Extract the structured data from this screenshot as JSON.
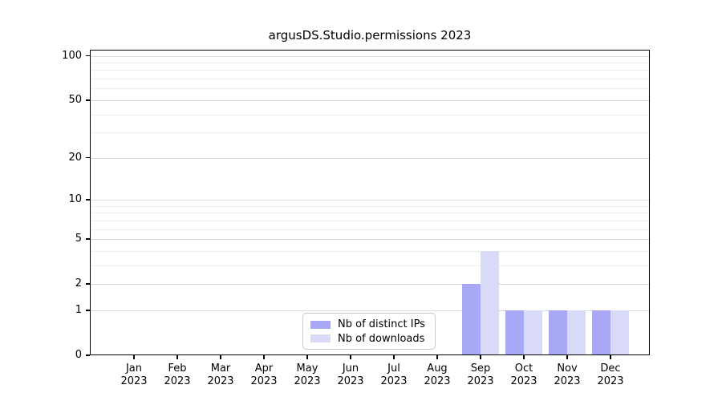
{
  "chart_data": {
    "type": "bar",
    "title": "argusDS.Studio.permissions 2023",
    "categories": [
      "Jan",
      "Feb",
      "Mar",
      "Apr",
      "May",
      "Jun",
      "Jul",
      "Aug",
      "Sep",
      "Oct",
      "Nov",
      "Dec"
    ],
    "x_year_label": "2023",
    "series": [
      {
        "name": "Nb of distinct IPs",
        "color": "#a8a8f6",
        "values": [
          0,
          0,
          0,
          0,
          0,
          0,
          0,
          0,
          2,
          1,
          1,
          1
        ]
      },
      {
        "name": "Nb of downloads",
        "color": "#d9d9f8",
        "values": [
          0,
          0,
          0,
          0,
          0,
          0,
          0,
          0,
          4,
          1,
          1,
          1
        ]
      }
    ],
    "yscale": "log1p",
    "ylim": [
      0,
      110
    ],
    "y_ticks": [
      0,
      1,
      2,
      5,
      10,
      20,
      50,
      100
    ],
    "y_minor_gridlines": [
      3,
      4,
      6,
      7,
      8,
      9,
      30,
      40,
      60,
      70,
      80,
      90
    ],
    "grid": "horizontal",
    "legend_position": "lower center",
    "colors": {
      "major_grid": "#d9d9d9",
      "minor_grid": "#ededed",
      "axis": "#000000",
      "text": "#000000",
      "background": "#ffffff"
    }
  }
}
